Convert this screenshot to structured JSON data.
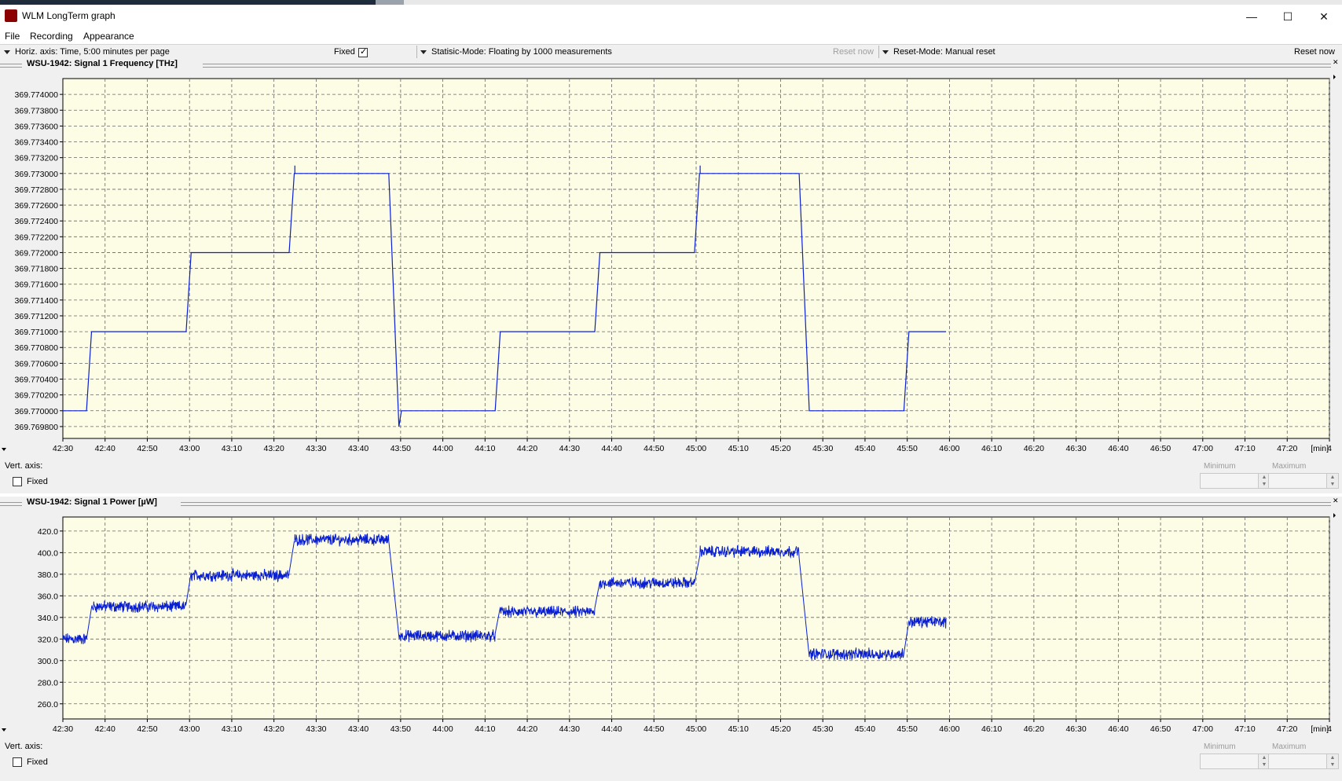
{
  "window": {
    "title": "WLM LongTerm graph",
    "minimize_glyph": "—",
    "maximize_glyph": "☐",
    "close_glyph": "✕"
  },
  "menu": {
    "items": [
      "File",
      "Recording",
      "Appearance"
    ]
  },
  "toolbar": {
    "horiz_axis": "Horiz. axis: Time,  5:00 minutes per page",
    "fixed_label": "Fixed",
    "statistic_mode": "Statisic-Mode: Floating by 1000 measurements",
    "reset_now_disabled": "Reset now",
    "reset_mode": "Reset-Mode: Manual reset",
    "reset_now": "Reset now"
  },
  "colors": {
    "plot_bg": "#fdfde6",
    "trace": "#0a1fd0",
    "grid": "#666666"
  },
  "panels": [
    {
      "title": "WSU-1942:  Signal 1  Frequency  [THz]",
      "vert_axis_label": "Vert. axis:",
      "fixed_label": "Fixed",
      "minimum_label": "Minimum",
      "maximum_label": "Maximum"
    },
    {
      "title": "WSU-1942:  Signal 1 Power  [µW]",
      "vert_axis_label": "Vert. axis:",
      "fixed_label": "Fixed",
      "minimum_label": "Minimum",
      "maximum_label": "Maximum"
    }
  ],
  "chart_data": [
    {
      "type": "line",
      "title": "WSU-1942:  Signal 1  Frequency  [THz]",
      "x_unit_label": "[min]",
      "x_ticks": [
        "42:30",
        "42:40",
        "42:50",
        "43:00",
        "43:10",
        "43:20",
        "43:30",
        "43:40",
        "43:50",
        "44:00",
        "44:10",
        "44:20",
        "44:30",
        "44:40",
        "44:50",
        "45:00",
        "45:10",
        "45:20",
        "45:30",
        "45:40",
        "45:50",
        "46:00",
        "46:10",
        "46:20",
        "46:30",
        "46:40",
        "46:50",
        "47:00",
        "47:10",
        "47:20",
        "4"
      ],
      "y_ticks": [
        "369.774000",
        "369.773800",
        "369.773600",
        "369.773400",
        "369.773200",
        "369.773000",
        "369.772800",
        "369.772600",
        "369.772400",
        "369.772200",
        "369.772000",
        "369.771800",
        "369.771600",
        "369.771400",
        "369.771200",
        "369.771000",
        "369.770800",
        "369.770600",
        "369.770400",
        "369.770200",
        "369.770000",
        "369.769800"
      ],
      "ylim": [
        369.76965,
        369.7742
      ],
      "xlim": [
        "42:30",
        "47:30"
      ],
      "grid": true,
      "series": [
        {
          "points": [
            [
              "42:30",
              369.77
            ],
            [
              "42:35.6",
              369.77
            ],
            [
              "42:36.8",
              369.771
            ],
            [
              "42:59.2",
              369.771
            ],
            [
              "43:00.4",
              369.772
            ],
            [
              "43:23.6",
              369.772
            ],
            [
              "43:24.8",
              369.773
            ],
            [
              "43:47.2",
              369.773
            ],
            [
              "43:49.6",
              369.7698
            ],
            [
              "43:50.2",
              369.77
            ],
            [
              "44:12.4",
              369.77
            ],
            [
              "44:13.6",
              369.771
            ],
            [
              "44:36.0",
              369.771
            ],
            [
              "44:37.2",
              369.772
            ],
            [
              "44:59.6",
              369.772
            ],
            [
              "45:00.8",
              369.773
            ],
            [
              "45:24.4",
              369.773
            ],
            [
              "45:26.8",
              369.77
            ],
            [
              "45:49.2",
              369.77
            ],
            [
              "45:50.4",
              369.771
            ],
            [
              "45:59.2",
              369.771
            ]
          ]
        }
      ]
    },
    {
      "type": "line",
      "title": "WSU-1942:  Signal 1 Power  [µW]",
      "x_unit_label": "[min]",
      "x_ticks": [
        "42:30",
        "42:40",
        "42:50",
        "43:00",
        "43:10",
        "43:20",
        "43:30",
        "43:40",
        "43:50",
        "44:00",
        "44:10",
        "44:20",
        "44:30",
        "44:40",
        "44:50",
        "45:00",
        "45:10",
        "45:20",
        "45:30",
        "45:40",
        "45:50",
        "46:00",
        "46:10",
        "46:20",
        "46:30",
        "46:40",
        "46:50",
        "47:00",
        "47:10",
        "47:20",
        "4"
      ],
      "y_ticks": [
        "420.0",
        "400.0",
        "380.0",
        "360.0",
        "340.0",
        "320.0",
        "300.0",
        "280.0",
        "260.0"
      ],
      "ylim": [
        246,
        433
      ],
      "xlim": [
        "42:30",
        "47:30"
      ],
      "grid": true,
      "series": [
        {
          "noise_amplitude": 4,
          "segments": [
            {
              "start": "42:30",
              "end": "42:35.6",
              "value": 320
            },
            {
              "start": "42:36.8",
              "end": "42:59.2",
              "value": 350
            },
            {
              "start": "43:00.4",
              "end": "43:23.6",
              "value": 379
            },
            {
              "start": "43:24.8",
              "end": "43:47.2",
              "value": 412
            },
            {
              "start": "43:49.6",
              "end": "44:12.4",
              "value": 323
            },
            {
              "start": "44:13.6",
              "end": "44:36.0",
              "value": 345
            },
            {
              "start": "44:37.2",
              "end": "44:59.6",
              "value": 372
            },
            {
              "start": "45:00.8",
              "end": "45:24.4",
              "value": 401
            },
            {
              "start": "45:26.8",
              "end": "45:49.2",
              "value": 306
            },
            {
              "start": "45:50.4",
              "end": "45:59.2",
              "value": 336
            }
          ]
        }
      ]
    }
  ]
}
